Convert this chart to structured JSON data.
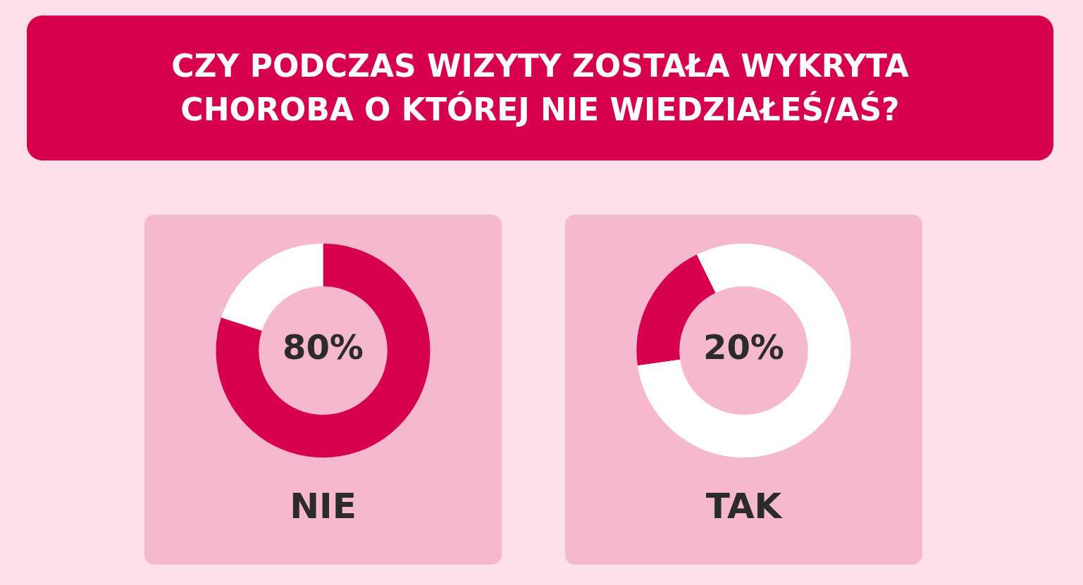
{
  "chart_data": [
    {
      "type": "donut",
      "title": "CZY PODCZAS WIZYTY ZOSTAŁA WYKRYTA CHOROBA O KTÓREJ NIE WIEDZIAŁEŚ/AŚ?",
      "xlabel": "NIE",
      "categories": [
        null,
        null
      ],
      "values": [
        80,
        20
      ],
      "colors": [
        "#d6004c",
        "#ffffff"
      ],
      "annotations": [
        "80%"
      ]
    },
    {
      "type": "donut",
      "xlabel": "TAK",
      "categories": [
        null,
        null
      ],
      "values": [
        20,
        80
      ],
      "colors": [
        "#d6004c",
        "#ffffff"
      ],
      "annotations": [
        "20%"
      ]
    }
  ]
}
